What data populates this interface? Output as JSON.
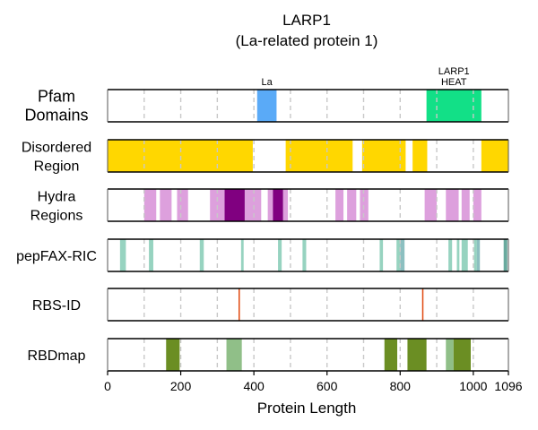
{
  "chart_data": {
    "type": "bar",
    "title_line1": "LARP1",
    "title_line2": "(La-related protein 1)",
    "xlabel": "Protein Length",
    "xlim": [
      0,
      1096
    ],
    "xticks": [
      0,
      200,
      400,
      600,
      800,
      1000,
      1096
    ],
    "xtick_labels": [
      "0",
      "200",
      "400",
      "600",
      "800",
      "1000",
      "1096"
    ],
    "gridlines": [
      100,
      200,
      300,
      400,
      500,
      600,
      700,
      800,
      900,
      1000
    ],
    "tracks": [
      {
        "name": "pfam",
        "label_lines": [
          "Pfam",
          "Domains"
        ],
        "big": true,
        "segments": [
          {
            "start": 409,
            "end": 462,
            "color": "#5aaaf7",
            "label": [
              "La"
            ]
          },
          {
            "start": 872,
            "end": 1022,
            "color": "#12e087",
            "label": [
              "LARP1",
              "HEAT"
            ]
          }
        ]
      },
      {
        "name": "disordered",
        "label_lines": [
          "Disordered",
          "Region"
        ],
        "segments": [
          {
            "start": 0,
            "end": 397,
            "color": "#ffd700"
          },
          {
            "start": 487,
            "end": 670,
            "color": "#ffd700"
          },
          {
            "start": 696,
            "end": 815,
            "color": "#ffd700"
          },
          {
            "start": 834,
            "end": 874,
            "color": "#ffd700"
          },
          {
            "start": 1022,
            "end": 1096,
            "color": "#ffd700"
          }
        ]
      },
      {
        "name": "hydra",
        "label_lines": [
          "Hydra",
          "Regions"
        ],
        "segments": [
          {
            "start": 100,
            "end": 133,
            "color": "#dda0dd"
          },
          {
            "start": 143,
            "end": 175,
            "color": "#dda0dd"
          },
          {
            "start": 190,
            "end": 220,
            "color": "#dda0dd"
          },
          {
            "start": 280,
            "end": 320,
            "color": "#dda0dd"
          },
          {
            "start": 320,
            "end": 375,
            "color": "#800080"
          },
          {
            "start": 375,
            "end": 420,
            "color": "#dda0dd"
          },
          {
            "start": 438,
            "end": 452,
            "color": "#dda0dd"
          },
          {
            "start": 452,
            "end": 480,
            "color": "#800080"
          },
          {
            "start": 480,
            "end": 493,
            "color": "#dda0dd"
          },
          {
            "start": 623,
            "end": 645,
            "color": "#dda0dd"
          },
          {
            "start": 655,
            "end": 680,
            "color": "#dda0dd"
          },
          {
            "start": 690,
            "end": 713,
            "color": "#dda0dd"
          },
          {
            "start": 867,
            "end": 900,
            "color": "#dda0dd"
          },
          {
            "start": 925,
            "end": 960,
            "color": "#dda0dd"
          },
          {
            "start": 968,
            "end": 990,
            "color": "#dda0dd"
          },
          {
            "start": 1000,
            "end": 1022,
            "color": "#dda0dd"
          }
        ]
      },
      {
        "name": "pepfax",
        "label_lines": [
          "pepFAX-RIC"
        ],
        "segments": [
          {
            "start": 34,
            "end": 50,
            "color": "#97d3c0"
          },
          {
            "start": 113,
            "end": 125,
            "color": "#97d3c0"
          },
          {
            "start": 252,
            "end": 263,
            "color": "#97d3c0"
          },
          {
            "start": 365,
            "end": 372,
            "color": "#97d3c0"
          },
          {
            "start": 466,
            "end": 476,
            "color": "#97d3c0"
          },
          {
            "start": 533,
            "end": 543,
            "color": "#97d3c0"
          },
          {
            "start": 744,
            "end": 753,
            "color": "#97d3c0"
          },
          {
            "start": 790,
            "end": 800,
            "color": "#97d3c0"
          },
          {
            "start": 800,
            "end": 812,
            "color": "#8cbfc0"
          },
          {
            "start": 932,
            "end": 942,
            "color": "#97d3c0"
          },
          {
            "start": 955,
            "end": 962,
            "color": "#97d3c0"
          },
          {
            "start": 968,
            "end": 985,
            "color": "#97d3c0"
          },
          {
            "start": 1002,
            "end": 1010,
            "color": "#97d3c0"
          },
          {
            "start": 1010,
            "end": 1018,
            "color": "#8cbfc0"
          },
          {
            "start": 1083,
            "end": 1093,
            "color": "#6aaa9e"
          }
        ]
      },
      {
        "name": "rbsid",
        "label_lines": [
          "RBS-ID"
        ],
        "segments": [
          {
            "start": 358,
            "end": 361,
            "color": "#e0480f"
          },
          {
            "start": 860,
            "end": 863,
            "color": "#e0480f"
          }
        ]
      },
      {
        "name": "rbdmap",
        "label_lines": [
          "RBDmap"
        ],
        "segments": [
          {
            "start": 160,
            "end": 197,
            "color": "#6b8e23"
          },
          {
            "start": 325,
            "end": 367,
            "color": "#90bf88"
          },
          {
            "start": 757,
            "end": 792,
            "color": "#6b8e23"
          },
          {
            "start": 820,
            "end": 872,
            "color": "#6b8e23"
          },
          {
            "start": 925,
            "end": 946,
            "color": "#90bf88"
          },
          {
            "start": 946,
            "end": 993,
            "color": "#6b8e23"
          }
        ]
      }
    ]
  }
}
